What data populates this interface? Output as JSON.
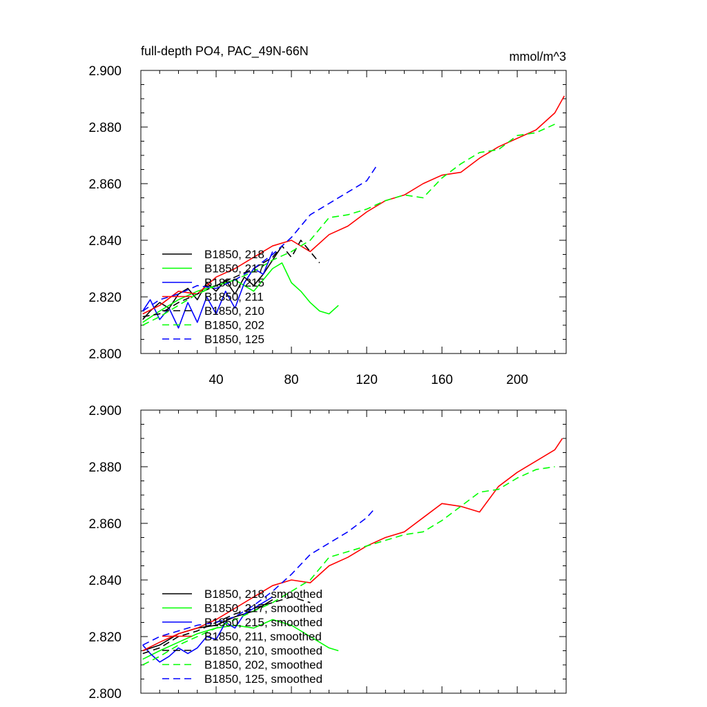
{
  "chart_data": [
    {
      "type": "line",
      "title": "full-depth PO4, PAC_49N-66N",
      "units": "mmol/m^3",
      "xlim": [
        0,
        226
      ],
      "ylim": [
        2.8,
        2.9
      ],
      "xticks": [
        40,
        80,
        120,
        160,
        200
      ],
      "xtick_labels": [
        "40",
        "80",
        "120",
        "160",
        "200"
      ],
      "yticks": [
        2.8,
        2.82,
        2.84,
        2.86,
        2.88,
        2.9
      ],
      "ytick_labels": [
        "2.800",
        "2.820",
        "2.840",
        "2.860",
        "2.880",
        "2.900"
      ],
      "legend_position": "lower-left",
      "series": [
        {
          "name": "B1850, 218",
          "color": "#000000",
          "dash": "solid",
          "x": [
            1,
            5,
            10,
            15,
            20,
            25,
            30,
            35,
            40,
            45,
            50,
            55,
            60,
            65,
            70,
            75
          ],
          "y": [
            2.812,
            2.815,
            2.818,
            2.816,
            2.821,
            2.823,
            2.819,
            2.825,
            2.822,
            2.826,
            2.821,
            2.827,
            2.824,
            2.828,
            2.833,
            2.838
          ]
        },
        {
          "name": "B1850, 217",
          "color": "#00ff00",
          "dash": "solid",
          "x": [
            1,
            10,
            20,
            30,
            40,
            50,
            60,
            70,
            75,
            80,
            85,
            90,
            95,
            100,
            105
          ],
          "y": [
            2.811,
            2.815,
            2.819,
            2.822,
            2.824,
            2.826,
            2.822,
            2.83,
            2.832,
            2.825,
            2.822,
            2.818,
            2.815,
            2.814,
            2.817
          ]
        },
        {
          "name": "B1850, 215",
          "color": "#0000ff",
          "dash": "solid",
          "x": [
            1,
            5,
            10,
            15,
            20,
            25,
            30,
            35,
            40,
            45,
            50,
            55,
            60,
            65,
            70
          ],
          "y": [
            2.815,
            2.819,
            2.812,
            2.816,
            2.809,
            2.818,
            2.811,
            2.82,
            2.814,
            2.822,
            2.816,
            2.825,
            2.83,
            2.828,
            2.836
          ]
        },
        {
          "name": "B1850, 211",
          "color": "#ff0000",
          "dash": "solid",
          "x": [
            1,
            10,
            20,
            30,
            40,
            50,
            60,
            70,
            80,
            90,
            100,
            110,
            120,
            130,
            140,
            150,
            160,
            170,
            180,
            190,
            200,
            210,
            220,
            225
          ],
          "y": [
            2.814,
            2.817,
            2.822,
            2.821,
            2.827,
            2.83,
            2.834,
            2.838,
            2.84,
            2.836,
            2.842,
            2.845,
            2.85,
            2.854,
            2.856,
            2.86,
            2.863,
            2.864,
            2.869,
            2.873,
            2.876,
            2.879,
            2.885,
            2.891
          ]
        },
        {
          "name": "B1850, 210",
          "color": "#000000",
          "dash": "dashed",
          "x": [
            1,
            10,
            20,
            30,
            40,
            50,
            60,
            70,
            75,
            80,
            85,
            90,
            95
          ],
          "y": [
            2.813,
            2.814,
            2.818,
            2.821,
            2.824,
            2.827,
            2.83,
            2.834,
            2.838,
            2.834,
            2.84,
            2.836,
            2.832
          ]
        },
        {
          "name": "B1850, 202",
          "color": "#00ff00",
          "dash": "dashed",
          "x": [
            1,
            10,
            20,
            30,
            40,
            50,
            60,
            70,
            80,
            90,
            100,
            110,
            120,
            130,
            140,
            150,
            160,
            170,
            180,
            190,
            200,
            210,
            220
          ],
          "y": [
            2.81,
            2.813,
            2.817,
            2.821,
            2.824,
            2.826,
            2.829,
            2.833,
            2.836,
            2.84,
            2.848,
            2.849,
            2.851,
            2.854,
            2.856,
            2.855,
            2.862,
            2.867,
            2.871,
            2.872,
            2.877,
            2.878,
            2.881
          ]
        },
        {
          "name": "B1850, 125",
          "color": "#0000ff",
          "dash": "dashed",
          "x": [
            1,
            10,
            20,
            30,
            40,
            50,
            60,
            70,
            80,
            90,
            100,
            110,
            115,
            120,
            125
          ],
          "y": [
            2.815,
            2.819,
            2.821,
            2.824,
            2.823,
            2.826,
            2.83,
            2.835,
            2.841,
            2.849,
            2.853,
            2.857,
            2.859,
            2.861,
            2.866
          ]
        }
      ]
    },
    {
      "type": "line",
      "title": "",
      "units": "",
      "xlim": [
        0,
        226
      ],
      "ylim": [
        2.8,
        2.9
      ],
      "yticks": [
        2.8,
        2.82,
        2.84,
        2.86,
        2.88,
        2.9
      ],
      "ytick_labels": [
        "2.800",
        "2.820",
        "2.840",
        "2.860",
        "2.880",
        "2.900"
      ],
      "legend_position": "lower-left",
      "series": [
        {
          "name": "B1850, 218, smoothed",
          "color": "#000000",
          "dash": "solid",
          "x": [
            1,
            10,
            20,
            30,
            40,
            50,
            60,
            70
          ],
          "y": [
            2.815,
            2.817,
            2.821,
            2.823,
            2.824,
            2.827,
            2.829,
            2.833
          ]
        },
        {
          "name": "B1850, 217, smoothed",
          "color": "#00ff00",
          "dash": "solid",
          "x": [
            1,
            10,
            20,
            30,
            40,
            50,
            60,
            70,
            80,
            90,
            100,
            105
          ],
          "y": [
            2.812,
            2.815,
            2.818,
            2.821,
            2.823,
            2.824,
            2.823,
            2.826,
            2.824,
            2.82,
            2.816,
            2.815
          ]
        },
        {
          "name": "B1850, 215, smoothed",
          "color": "#0000ff",
          "dash": "solid",
          "x": [
            1,
            5,
            10,
            15,
            20,
            25,
            30,
            35,
            40,
            45,
            50,
            55,
            60,
            65,
            70
          ],
          "y": [
            2.817,
            2.814,
            2.811,
            2.813,
            2.816,
            2.814,
            2.816,
            2.82,
            2.819,
            2.825,
            2.823,
            2.828,
            2.83,
            2.832,
            2.834
          ]
        },
        {
          "name": "B1850, 211, smoothed",
          "color": "#ff0000",
          "dash": "solid",
          "x": [
            1,
            10,
            20,
            30,
            40,
            50,
            60,
            70,
            80,
            90,
            100,
            110,
            120,
            130,
            140,
            150,
            160,
            170,
            180,
            190,
            200,
            210,
            220,
            224
          ],
          "y": [
            2.815,
            2.818,
            2.821,
            2.823,
            2.826,
            2.83,
            2.834,
            2.838,
            2.84,
            2.839,
            2.845,
            2.848,
            2.852,
            2.855,
            2.857,
            2.862,
            2.867,
            2.866,
            2.864,
            2.873,
            2.878,
            2.882,
            2.886,
            2.89
          ]
        },
        {
          "name": "B1850, 210, smoothed",
          "color": "#000000",
          "dash": "dashed",
          "x": [
            1,
            10,
            20,
            30,
            40,
            50,
            60,
            70,
            80,
            90
          ],
          "y": [
            2.814,
            2.816,
            2.82,
            2.822,
            2.825,
            2.828,
            2.83,
            2.832,
            2.834,
            2.832
          ]
        },
        {
          "name": "B1850, 202, smoothed",
          "color": "#00ff00",
          "dash": "dashed",
          "x": [
            1,
            10,
            20,
            30,
            40,
            50,
            60,
            70,
            80,
            90,
            100,
            110,
            120,
            130,
            140,
            150,
            160,
            170,
            180,
            190,
            200,
            210,
            220
          ],
          "y": [
            2.81,
            2.813,
            2.817,
            2.82,
            2.823,
            2.826,
            2.829,
            2.832,
            2.836,
            2.84,
            2.848,
            2.85,
            2.852,
            2.854,
            2.856,
            2.857,
            2.861,
            2.866,
            2.871,
            2.872,
            2.876,
            2.879,
            2.88
          ]
        },
        {
          "name": "B1850, 125, smoothed",
          "color": "#0000ff",
          "dash": "dashed",
          "x": [
            1,
            10,
            20,
            30,
            40,
            50,
            60,
            70,
            80,
            90,
            100,
            110,
            120,
            124
          ],
          "y": [
            2.817,
            2.82,
            2.822,
            2.824,
            2.825,
            2.827,
            2.831,
            2.836,
            2.842,
            2.849,
            2.853,
            2.857,
            2.862,
            2.865
          ]
        }
      ]
    }
  ]
}
